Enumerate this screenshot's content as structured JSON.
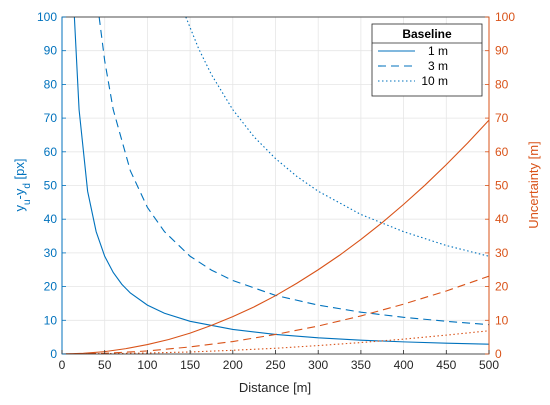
{
  "chart_data": {
    "type": "line",
    "xlabel": "Distance [m]",
    "ylabel_left": "y_u-y_d [px]",
    "ylabel_right": "Uncertainty [m]",
    "xlim": [
      0,
      500
    ],
    "ylim_left": [
      0,
      100
    ],
    "ylim_right": [
      0,
      100
    ],
    "x_ticks": [
      0,
      50,
      100,
      150,
      200,
      250,
      300,
      350,
      400,
      450,
      500
    ],
    "y_ticks_left": [
      0,
      10,
      20,
      30,
      40,
      50,
      60,
      70,
      80,
      90,
      100
    ],
    "y_ticks_right": [
      0,
      10,
      20,
      30,
      40,
      50,
      60,
      70,
      80,
      90,
      100
    ],
    "grid": true,
    "legend": {
      "title": "Baseline",
      "placement": "top-right",
      "entries": [
        "1 m",
        "3 m",
        "10 m"
      ]
    },
    "colors": {
      "left_series": "#0072BD",
      "right_series": "#D95319",
      "grid": "#e6e6e6",
      "axis": "#262626"
    },
    "series": [
      {
        "name": "1 m",
        "axis": "left",
        "style": "solid",
        "x": [
          14.5,
          20,
          30,
          40,
          50,
          60,
          70,
          80,
          100,
          120,
          150,
          200,
          250,
          300,
          350,
          400,
          450,
          500
        ],
        "y": [
          100,
          72.5,
          48.3,
          36.3,
          29.0,
          24.2,
          20.7,
          18.1,
          14.5,
          12.1,
          9.7,
          7.3,
          5.8,
          4.8,
          4.1,
          3.6,
          3.2,
          2.9
        ]
      },
      {
        "name": "3 m",
        "axis": "left",
        "style": "dashed",
        "x": [
          43.5,
          50,
          60,
          80,
          100,
          120,
          150,
          175,
          200,
          250,
          300,
          350,
          400,
          450,
          500
        ],
        "y": [
          100,
          87.0,
          72.5,
          54.4,
          43.5,
          36.3,
          29.0,
          24.9,
          21.8,
          17.4,
          14.5,
          12.4,
          10.9,
          9.7,
          8.7
        ]
      },
      {
        "name": "10 m",
        "axis": "left",
        "style": "dotted",
        "x": [
          145,
          160,
          175,
          200,
          225,
          250,
          275,
          300,
          350,
          400,
          450,
          500
        ],
        "y": [
          100,
          90.6,
          82.9,
          72.5,
          64.4,
          58.0,
          52.7,
          48.3,
          41.4,
          36.3,
          32.2,
          29.0
        ]
      },
      {
        "name": "1 m",
        "axis": "right",
        "style": "solid",
        "x": [
          0,
          25,
          50,
          75,
          100,
          125,
          150,
          175,
          200,
          225,
          250,
          275,
          300,
          325,
          350,
          375,
          400,
          425,
          450,
          475,
          500
        ],
        "y": [
          0,
          0.2,
          0.7,
          1.6,
          2.8,
          4.3,
          6.2,
          8.5,
          11.1,
          14.0,
          17.3,
          21.0,
          25.0,
          29.3,
          34.0,
          39.0,
          44.4,
          50.1,
          56.2,
          62.6,
          69.4
        ]
      },
      {
        "name": "3 m",
        "axis": "right",
        "style": "dashed",
        "x": [
          0,
          50,
          100,
          150,
          200,
          250,
          300,
          350,
          400,
          450,
          500
        ],
        "y": [
          0,
          0.2,
          0.9,
          2.1,
          3.7,
          5.8,
          8.3,
          11.3,
          14.8,
          18.7,
          23.1
        ]
      },
      {
        "name": "10 m",
        "axis": "right",
        "style": "dotted",
        "x": [
          0,
          50,
          100,
          150,
          200,
          250,
          300,
          350,
          400,
          450,
          500
        ],
        "y": [
          0,
          0.1,
          0.3,
          0.6,
          1.1,
          1.7,
          2.5,
          3.4,
          4.4,
          5.6,
          6.9
        ]
      }
    ]
  }
}
